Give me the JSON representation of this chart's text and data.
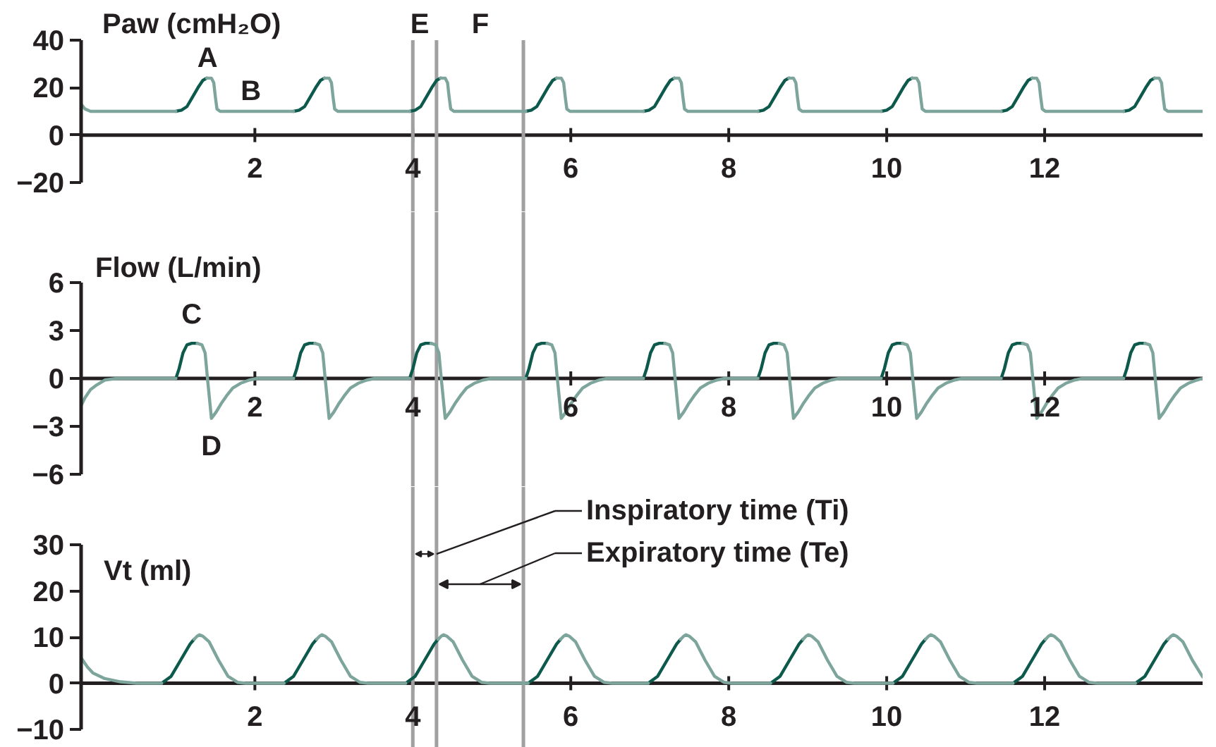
{
  "chart_data": [
    {
      "type": "line",
      "title": "Paw (cmH₂O)",
      "xlim": [
        -0.2,
        14
      ],
      "xticks": [
        2,
        4,
        6,
        8,
        10,
        12
      ],
      "ylim": [
        -20,
        40
      ],
      "yticks": [
        -20,
        0,
        20,
        40
      ],
      "series": [
        {
          "color": "#0d5a4c",
          "x": [
            1.0,
            1.07,
            1.14,
            1.21,
            1.28,
            1.34,
            1.39,
            1.7,
            2.49,
            2.56,
            2.63,
            2.7,
            2.77,
            2.83,
            2.88,
            3.2,
            3.96,
            4.03,
            4.1,
            4.17,
            4.24,
            4.3,
            4.35,
            4.7,
            5.43,
            5.5,
            5.57,
            5.64,
            5.71,
            5.77,
            5.82,
            6.2,
            6.92,
            6.99,
            7.06,
            7.13,
            7.2,
            7.26,
            7.31,
            7.7,
            8.37,
            8.44,
            8.51,
            8.58,
            8.65,
            8.71,
            8.76,
            9.2,
            9.93,
            10.0,
            10.07,
            10.14,
            10.21,
            10.27,
            10.32,
            10.7,
            11.45,
            11.52,
            11.59,
            11.66,
            11.73,
            11.79,
            11.84,
            12.2,
            13.0,
            13.07,
            13.14,
            13.21,
            13.28,
            13.34,
            13.39
          ],
          "values": [
            10,
            10.5,
            12,
            16,
            20,
            23,
            24,
            null,
            10,
            10.5,
            12,
            16,
            20,
            23,
            24,
            null,
            10,
            10.5,
            12,
            16,
            20,
            23,
            24,
            null,
            10,
            10.5,
            12,
            16,
            20,
            23,
            24,
            null,
            10,
            10.5,
            12,
            16,
            20,
            23,
            24,
            null,
            10,
            10.5,
            12,
            16,
            20,
            23,
            24,
            null,
            10,
            10.5,
            12,
            16,
            20,
            23,
            24,
            null,
            10,
            10.5,
            12,
            16,
            20,
            23,
            24,
            null,
            10,
            10.5,
            12,
            16,
            20,
            23,
            24
          ]
        },
        {
          "color": "#7da59c",
          "x": [
            -0.2,
            -0.15,
            -0.08,
            1.0,
            1.2,
            1.39,
            1.45,
            1.48,
            1.5,
            1.52,
            1.56,
            2.49,
            2.7,
            2.88,
            2.94,
            2.97,
            2.99,
            3.01,
            3.05,
            3.96,
            4.1,
            4.35,
            4.41,
            4.44,
            4.46,
            4.48,
            4.52,
            5.43,
            5.6,
            5.82,
            5.88,
            5.91,
            5.93,
            5.95,
            5.99,
            6.92,
            7.1,
            7.31,
            7.37,
            7.4,
            7.42,
            7.44,
            7.48,
            8.37,
            8.5,
            8.76,
            8.82,
            8.85,
            8.87,
            8.89,
            8.93,
            9.93,
            10.1,
            10.32,
            10.38,
            10.41,
            10.43,
            10.45,
            10.49,
            11.45,
            11.6,
            11.84,
            11.9,
            11.93,
            11.95,
            11.97,
            12.01,
            13.0,
            13.2,
            13.39,
            13.45,
            13.48,
            13.5,
            13.52,
            13.56,
            14.0
          ],
          "values": [
            13,
            11,
            10,
            10,
            null,
            24,
            24,
            22,
            16,
            11,
            10,
            10,
            null,
            24,
            24,
            22,
            16,
            11,
            10,
            10,
            null,
            24,
            24,
            22,
            16,
            11,
            10,
            10,
            null,
            24,
            24,
            22,
            16,
            11,
            10,
            10,
            null,
            24,
            24,
            22,
            16,
            11,
            10,
            10,
            null,
            24,
            24,
            22,
            16,
            11,
            10,
            10,
            null,
            24,
            24,
            22,
            16,
            11,
            10,
            10,
            null,
            24,
            24,
            22,
            16,
            11,
            10,
            10,
            null,
            24,
            24,
            22,
            16,
            11,
            10,
            10
          ]
        }
      ],
      "ref_lines": [
        {
          "axis": "x",
          "value": 4.0,
          "color": "#a0a0a0"
        },
        {
          "axis": "x",
          "value": 4.3,
          "color": "#a0a0a0"
        },
        {
          "axis": "x",
          "value": 5.4,
          "color": "#a0a0a0"
        }
      ],
      "annotations": [
        {
          "text": "A",
          "x": 1.4,
          "y": 24
        },
        {
          "text": "B",
          "x": 1.95,
          "y": 10
        },
        "E",
        "F"
      ]
    },
    {
      "type": "line",
      "title": "Flow (L/min)",
      "xlim": [
        -0.2,
        14
      ],
      "xticks": [
        2,
        4,
        6,
        8,
        10,
        12
      ],
      "ylim": [
        -6,
        6
      ],
      "yticks": [
        -6,
        -3,
        0,
        3,
        6
      ],
      "series": [
        {
          "color": "#0d5a4c",
          "x": [
            1.0,
            1.04,
            1.09,
            1.14,
            1.2,
            1.27,
            1.6,
            2.49,
            2.53,
            2.58,
            2.63,
            2.69,
            2.76,
            3.1,
            3.96,
            4.0,
            4.05,
            4.1,
            4.16,
            4.23,
            4.6,
            5.43,
            5.47,
            5.52,
            5.57,
            5.63,
            5.7,
            6.1,
            6.92,
            6.96,
            7.01,
            7.06,
            7.12,
            7.19,
            7.5,
            8.37,
            8.41,
            8.46,
            8.51,
            8.57,
            8.64,
            9.0,
            9.93,
            9.97,
            10.02,
            10.07,
            10.13,
            10.2,
            10.5,
            11.45,
            11.49,
            11.54,
            11.59,
            11.65,
            11.72,
            12.0,
            13.0,
            13.04,
            13.09,
            13.14,
            13.2,
            13.27
          ],
          "values": [
            0,
            0.6,
            1.6,
            2.1,
            2.2,
            2.2,
            null,
            0,
            0.6,
            1.6,
            2.1,
            2.2,
            2.2,
            null,
            0,
            0.6,
            1.6,
            2.1,
            2.2,
            2.2,
            null,
            0,
            0.6,
            1.6,
            2.1,
            2.2,
            2.2,
            null,
            0,
            0.6,
            1.6,
            2.1,
            2.2,
            2.2,
            null,
            0,
            0.6,
            1.6,
            2.1,
            2.2,
            2.2,
            null,
            0,
            0.6,
            1.6,
            2.1,
            2.2,
            2.2,
            null,
            0,
            0.6,
            1.6,
            2.1,
            2.2,
            2.2,
            null,
            0,
            0.6,
            1.6,
            2.1,
            2.2,
            2.2
          ]
        },
        {
          "color": "#7da59c",
          "x": [
            -0.2,
            -0.15,
            -0.08,
            0,
            0.1,
            0.25,
            1.0,
            1.1,
            1.27,
            1.33,
            1.37,
            1.4,
            1.43,
            1.45,
            1.51,
            1.57,
            1.64,
            1.72,
            1.82,
            1.93,
            2.03,
            2.49,
            2.6,
            2.76,
            2.82,
            2.86,
            2.89,
            2.92,
            2.94,
            3.0,
            3.06,
            3.13,
            3.21,
            3.31,
            3.42,
            3.52,
            3.96,
            4.1,
            4.23,
            4.29,
            4.33,
            4.36,
            4.39,
            4.41,
            4.47,
            4.53,
            4.6,
            4.68,
            4.78,
            4.89,
            4.99,
            5.43,
            5.55,
            5.7,
            5.76,
            5.8,
            5.83,
            5.86,
            5.88,
            5.94,
            6.0,
            6.07,
            6.15,
            6.25,
            6.36,
            6.46,
            6.92,
            7.05,
            7.19,
            7.25,
            7.29,
            7.32,
            7.35,
            7.37,
            7.43,
            7.49,
            7.56,
            7.64,
            7.74,
            7.85,
            7.95,
            8.37,
            8.5,
            8.64,
            8.7,
            8.74,
            8.77,
            8.8,
            8.82,
            8.88,
            8.94,
            9.01,
            9.09,
            9.19,
            9.3,
            9.4,
            9.93,
            10.05,
            10.2,
            10.26,
            10.3,
            10.33,
            10.36,
            10.38,
            10.44,
            10.5,
            10.57,
            10.65,
            10.75,
            10.86,
            10.96,
            11.45,
            11.55,
            11.72,
            11.78,
            11.82,
            11.85,
            11.88,
            11.9,
            11.96,
            12.02,
            12.09,
            12.17,
            12.27,
            12.38,
            12.48,
            13.0,
            13.1,
            13.27,
            13.33,
            13.37,
            13.4,
            13.43,
            13.45,
            13.51,
            13.57,
            13.64,
            13.72,
            13.82,
            13.93,
            14.0
          ],
          "values": [
            -1.7,
            -1.2,
            -0.7,
            -0.4,
            -0.1,
            0,
            0,
            null,
            2.2,
            2.1,
            1.6,
            0,
            -1.5,
            -2.5,
            -2.1,
            -1.6,
            -1.1,
            -0.6,
            -0.3,
            -0.1,
            0,
            0,
            null,
            2.2,
            2.1,
            1.6,
            0,
            -1.5,
            -2.5,
            -2.1,
            -1.6,
            -1.1,
            -0.6,
            -0.3,
            -0.1,
            0,
            0,
            null,
            2.2,
            2.1,
            1.6,
            0,
            -1.5,
            -2.5,
            -2.1,
            -1.6,
            -1.1,
            -0.6,
            -0.3,
            -0.1,
            0,
            0,
            null,
            2.2,
            2.1,
            1.6,
            0,
            -1.5,
            -2.5,
            -2.1,
            -1.6,
            -1.1,
            -0.6,
            -0.3,
            -0.1,
            0,
            0,
            null,
            2.2,
            2.1,
            1.6,
            0,
            -1.5,
            -2.5,
            -2.1,
            -1.6,
            -1.1,
            -0.6,
            -0.3,
            -0.1,
            0,
            0,
            null,
            2.2,
            2.1,
            1.6,
            0,
            -1.5,
            -2.5,
            -2.1,
            -1.6,
            -1.1,
            -0.6,
            -0.3,
            -0.1,
            0,
            0,
            null,
            2.2,
            2.1,
            1.6,
            0,
            -1.5,
            -2.5,
            -2.1,
            -1.6,
            -1.1,
            -0.6,
            -0.3,
            -0.1,
            0,
            0,
            null,
            2.2,
            2.1,
            1.6,
            0,
            -1.5,
            -2.5,
            -2.1,
            -1.6,
            -1.1,
            -0.6,
            -0.3,
            -0.1,
            0,
            0,
            null,
            2.2,
            2.1,
            1.6,
            0,
            -1.5,
            -2.5,
            -2.1,
            -1.6,
            -1.1,
            -0.6,
            -0.3,
            -0.1,
            0
          ]
        }
      ],
      "ref_lines": [
        {
          "axis": "x",
          "value": 4.0,
          "color": "#a0a0a0"
        },
        {
          "axis": "x",
          "value": 4.3,
          "color": "#a0a0a0"
        },
        {
          "axis": "x",
          "value": 5.4,
          "color": "#a0a0a0"
        }
      ],
      "annotations": [
        {
          "text": "C",
          "x": 1.2,
          "y": 2.2
        },
        {
          "text": "D",
          "x": 1.45,
          "y": -2.5
        }
      ]
    },
    {
      "type": "line",
      "title": "Vt (ml)",
      "xlim": [
        -0.2,
        14
      ],
      "xticks": [
        2,
        4,
        6,
        8,
        10,
        12
      ],
      "ylim": [
        -10,
        30
      ],
      "yticks": [
        -10,
        0,
        10,
        20,
        30
      ],
      "series": [
        {
          "color": "#0d5a4c",
          "x": [
            0.82,
            0.94,
            1.06,
            1.18,
            1.23,
            1.6,
            2.37,
            2.49,
            2.61,
            2.73,
            2.78,
            3.2,
            3.91,
            4.03,
            4.15,
            4.27,
            4.32,
            4.7,
            5.46,
            5.58,
            5.7,
            5.82,
            5.87,
            6.3,
            6.98,
            7.1,
            7.22,
            7.34,
            7.39,
            7.8,
            8.53,
            8.65,
            8.77,
            8.89,
            8.94,
            9.3,
            10.08,
            10.2,
            10.32,
            10.44,
            10.49,
            10.9,
            11.6,
            11.72,
            11.84,
            11.96,
            12.01,
            12.4,
            13.15,
            13.27,
            13.39,
            13.51,
            13.56
          ],
          "values": [
            0,
            1.5,
            5,
            8.5,
            9.5,
            null,
            0,
            1.5,
            5,
            8.5,
            9.5,
            null,
            0,
            1.5,
            5,
            8.5,
            9.5,
            null,
            0,
            1.5,
            5,
            8.5,
            9.5,
            null,
            0,
            1.5,
            5,
            8.5,
            9.5,
            null,
            0,
            1.5,
            5,
            8.5,
            9.5,
            null,
            0,
            1.5,
            5,
            8.5,
            9.5,
            null,
            0,
            1.5,
            5,
            8.5,
            9.5,
            null,
            0,
            1.5,
            5,
            8.5,
            9.5
          ]
        },
        {
          "color": "#7da59c",
          "x": [
            -0.2,
            -0.12,
            -0.05,
            0.1,
            0.3,
            0.5,
            0.82,
            1.0,
            1.23,
            1.27,
            1.3,
            1.34,
            1.42,
            1.54,
            1.66,
            1.78,
            1.88,
            2.37,
            2.6,
            2.78,
            2.82,
            2.85,
            2.89,
            2.97,
            3.09,
            3.21,
            3.33,
            3.43,
            3.91,
            4.1,
            4.32,
            4.36,
            4.39,
            4.43,
            4.51,
            4.63,
            4.75,
            4.87,
            4.97,
            5.46,
            5.7,
            5.87,
            5.91,
            5.94,
            5.98,
            6.06,
            6.18,
            6.3,
            6.42,
            6.52,
            6.98,
            7.2,
            7.39,
            7.43,
            7.46,
            7.5,
            7.58,
            7.7,
            7.82,
            7.94,
            8.04,
            8.53,
            8.7,
            8.94,
            8.98,
            9.01,
            9.05,
            9.13,
            9.25,
            9.37,
            9.49,
            9.59,
            10.08,
            10.3,
            10.49,
            10.53,
            10.56,
            10.6,
            10.68,
            10.8,
            10.92,
            11.04,
            11.14,
            11.6,
            11.8,
            12.01,
            12.05,
            12.08,
            12.12,
            12.2,
            12.32,
            12.44,
            12.56,
            12.66,
            13.15,
            13.4,
            13.56,
            13.6,
            13.63,
            13.67,
            13.75,
            13.87,
            14.0
          ],
          "values": [
            5.5,
            3.5,
            2.2,
            1,
            0.3,
            0,
            0,
            null,
            9.5,
            10.2,
            10.5,
            10.2,
            9,
            5,
            1.5,
            0.2,
            0,
            0,
            null,
            9.5,
            10.2,
            10.5,
            10.2,
            9,
            5,
            1.5,
            0.2,
            0,
            0,
            null,
            9.5,
            10.2,
            10.5,
            10.2,
            9,
            5,
            1.5,
            0.2,
            0,
            0,
            null,
            9.5,
            10.2,
            10.5,
            10.2,
            9,
            5,
            1.5,
            0.2,
            0,
            0,
            null,
            9.5,
            10.2,
            10.5,
            10.2,
            9,
            5,
            1.5,
            0.2,
            0,
            0,
            null,
            9.5,
            10.2,
            10.5,
            10.2,
            9,
            5,
            1.5,
            0.2,
            0,
            0,
            null,
            9.5,
            10.2,
            10.5,
            10.2,
            9,
            5,
            1.5,
            0.2,
            0,
            0,
            null,
            9.5,
            10.2,
            10.5,
            10.2,
            9,
            5,
            1.5,
            0.2,
            0,
            0,
            null,
            9.5,
            10.2,
            10.5,
            10.2,
            9,
            5,
            1.4
          ]
        }
      ],
      "ref_lines": [
        {
          "axis": "x",
          "value": 4.0,
          "color": "#a0a0a0"
        },
        {
          "axis": "x",
          "value": 4.3,
          "color": "#a0a0a0"
        },
        {
          "axis": "x",
          "value": 5.4,
          "color": "#a0a0a0"
        }
      ],
      "annotations": [
        {
          "text": "Inspiratory time (Ti)",
          "x": 4.3,
          "y": 28
        },
        "Expiratory time (Te)"
      ]
    }
  ]
}
